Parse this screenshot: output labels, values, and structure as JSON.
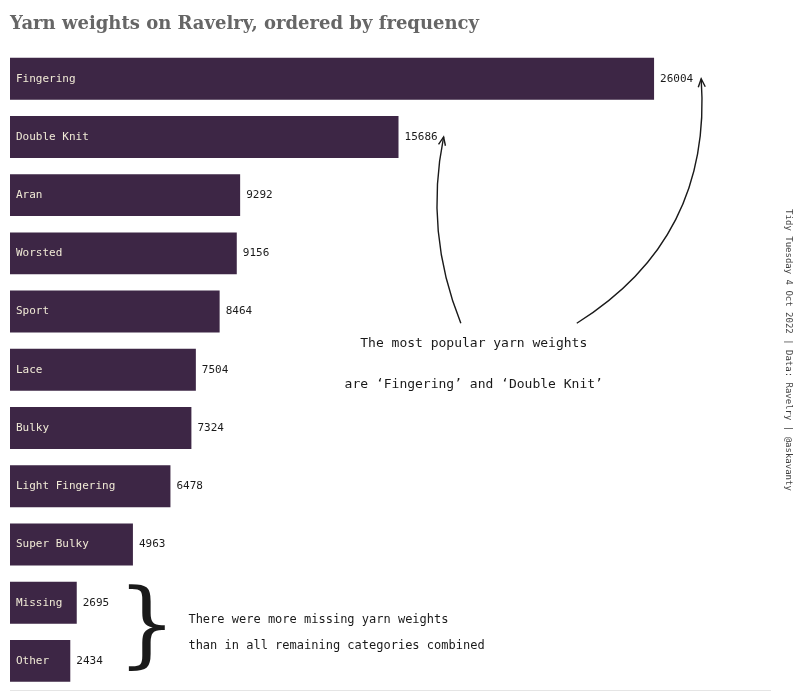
{
  "chart_data": {
    "type": "bar",
    "orientation": "horizontal",
    "title": "Yarn weights on Ravelry, ordered by frequency",
    "categories": [
      "Fingering",
      "Double Knit",
      "Aran",
      "Worsted",
      "Sport",
      "Lace",
      "Bulky",
      "Light Fingering",
      "Super Bulky",
      "Missing",
      "Other"
    ],
    "values": [
      26004,
      15686,
      9292,
      9156,
      8464,
      7504,
      7324,
      6478,
      4963,
      2695,
      2434
    ],
    "color": "#3d2645",
    "xlim": [
      0,
      30684.72
    ],
    "grid": false,
    "tick_labels": false,
    "data_labels": true,
    "annotations": [
      "The most popular yarn weights",
      "are ‘Fingering’ and ‘Double Knit’",
      "}",
      "There were more missing yarn weights",
      "than in all remaining categories combined",
      "Tidy Tuesday 4 Oct 2022 | Data: Ravelry | @askavanty"
    ]
  }
}
